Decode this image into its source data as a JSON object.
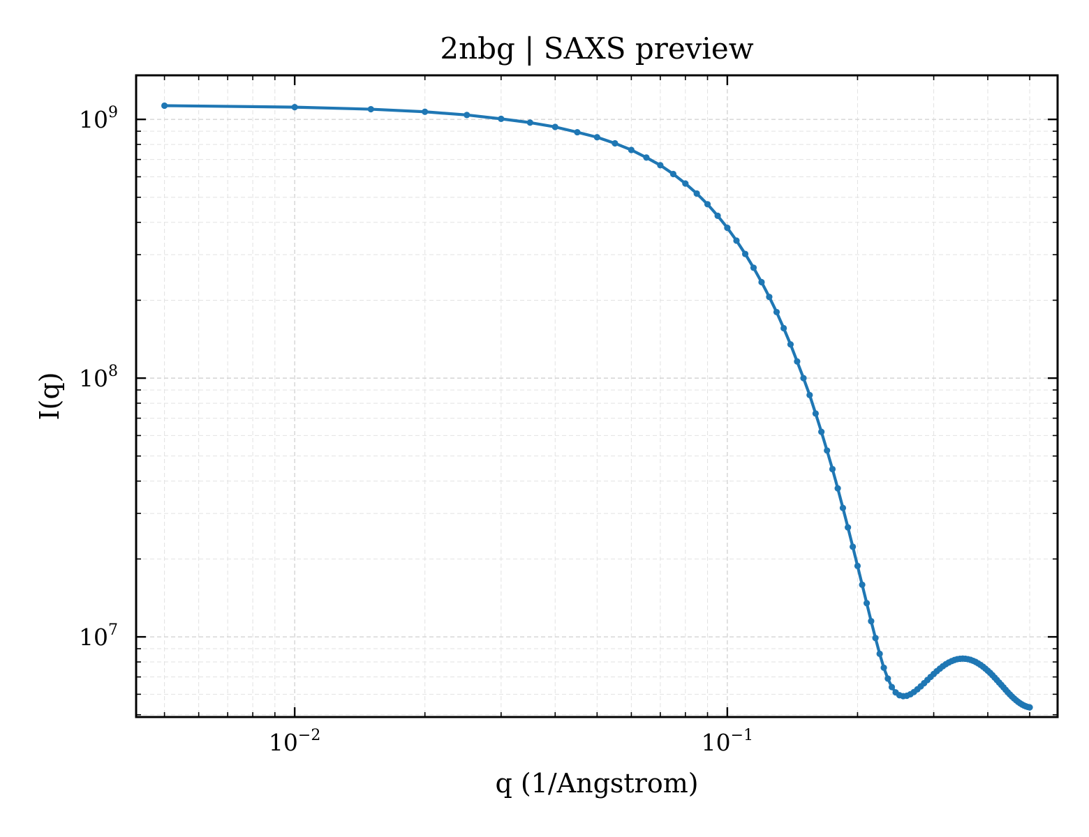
{
  "chart_data": {
    "type": "line",
    "title": "2nbg | SAXS preview",
    "xlabel": "q (1/Angstrom)",
    "ylabel": "I(q)",
    "xscale": "log",
    "yscale": "log",
    "xlim": [
      0.0043,
      0.58
    ],
    "ylim": [
      4900000,
      1480000000
    ],
    "grid": true,
    "legend": "none",
    "x_ticks": [
      {
        "value": 0.01,
        "base": "10",
        "exp": "−2"
      },
      {
        "value": 0.1,
        "base": "10",
        "exp": "−1"
      }
    ],
    "y_ticks": [
      {
        "value": 10000000,
        "base": "10",
        "exp": "7"
      },
      {
        "value": 100000000,
        "base": "10",
        "exp": "8"
      },
      {
        "value": 1000000000,
        "base": "10",
        "exp": "9"
      }
    ],
    "color": "#1f77b4",
    "series": [
      {
        "x": [
          0.005,
          0.01,
          0.015,
          0.02,
          0.025,
          0.03,
          0.035,
          0.04,
          0.045,
          0.05,
          0.055,
          0.06,
          0.065,
          0.07,
          0.075,
          0.08,
          0.085,
          0.09,
          0.095,
          0.1,
          0.105,
          0.11,
          0.115,
          0.12,
          0.125,
          0.13,
          0.135,
          0.14,
          0.145,
          0.15,
          0.155,
          0.16,
          0.165,
          0.17,
          0.175,
          0.18,
          0.185,
          0.19,
          0.195,
          0.2,
          0.205,
          0.21,
          0.215,
          0.22,
          0.225,
          0.23,
          0.235,
          0.24,
          0.245,
          0.25,
          0.255,
          0.26,
          0.265,
          0.27,
          0.275,
          0.28,
          0.285,
          0.29,
          0.295,
          0.3,
          0.305,
          0.31,
          0.315,
          0.32,
          0.325,
          0.33,
          0.335,
          0.34,
          0.345,
          0.35,
          0.355,
          0.36,
          0.365,
          0.37,
          0.375,
          0.38,
          0.385,
          0.39,
          0.395,
          0.4,
          0.405,
          0.41,
          0.415,
          0.42,
          0.425,
          0.43,
          0.435,
          0.44,
          0.445,
          0.45,
          0.455,
          0.46,
          0.465,
          0.47,
          0.475,
          0.48,
          0.485,
          0.49,
          0.495,
          0.5
        ],
        "y": [
          1130000000,
          1115000000,
          1095000000,
          1070000000,
          1040000000,
          1005000000,
          972000000,
          935000000,
          892000000,
          853000000,
          808000000,
          762000000,
          712000000,
          665000000,
          615000000,
          565000000,
          517000000,
          470000000,
          424000000,
          381000000,
          340000000,
          302000000,
          267000000,
          235000000,
          206000000,
          180000000,
          156000000,
          135000000,
          116000000,
          100000000,
          86000000,
          73000000,
          62000000,
          52500000,
          44500000,
          37500000,
          31500000,
          26500000,
          22300000,
          18800000,
          15900000,
          13500000,
          11500000,
          9900000,
          8600000,
          7600000,
          6900000,
          6400000,
          6100000,
          5950000,
          5900000,
          5920000,
          6000000,
          6120000,
          6270000,
          6440000,
          6620000,
          6810000,
          7000000,
          7190000,
          7370000,
          7540000,
          7700000,
          7840000,
          7960000,
          8060000,
          8140000,
          8200000,
          8230000,
          8240000,
          8230000,
          8200000,
          8150000,
          8080000,
          8000000,
          7900000,
          7790000,
          7670000,
          7540000,
          7400000,
          7260000,
          7110000,
          6960000,
          6810000,
          6660000,
          6520000,
          6380000,
          6240000,
          6110000,
          5990000,
          5880000,
          5780000,
          5690000,
          5610000,
          5540000,
          5480000,
          5430000,
          5390000,
          5360000,
          5340000
        ]
      }
    ]
  }
}
